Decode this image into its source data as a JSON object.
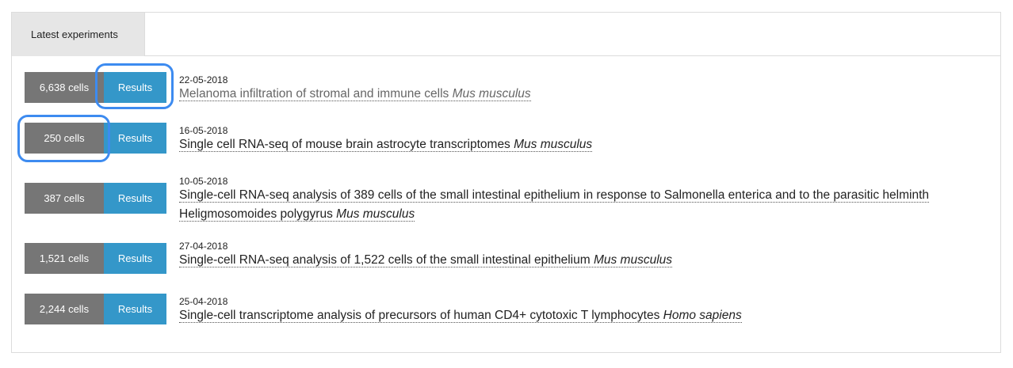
{
  "tabs": [
    {
      "label": "Latest experiments"
    }
  ],
  "experiments": [
    {
      "cells": "6,638 cells",
      "results_label": "Results",
      "date": "22-05-2018",
      "title": "Melanoma infiltration of stromal and immune cells",
      "species": "Mus musculus"
    },
    {
      "cells": "250 cells",
      "results_label": "Results",
      "date": "16-05-2018",
      "title": "Single cell RNA-seq of mouse brain astrocyte transcriptomes",
      "species": "Mus musculus"
    },
    {
      "cells": "387 cells",
      "results_label": "Results",
      "date": "10-05-2018",
      "title": "Single-cell RNA-seq analysis of 389 cells of the small intestinal epithelium in response to Salmonella enterica and to the parasitic helminth Heligmosomoides polygyrus",
      "species": "Mus musculus"
    },
    {
      "cells": "1,521 cells",
      "results_label": "Results",
      "date": "27-04-2018",
      "title": "Single-cell RNA-seq analysis of 1,522 cells of the small intestinal epithelium",
      "species": "Mus musculus"
    },
    {
      "cells": "2,244 cells",
      "results_label": "Results",
      "date": "25-04-2018",
      "title": "Single-cell transcriptome analysis of precursors of human CD4+ cytotoxic T lymphocytes",
      "species": "Homo sapiens"
    }
  ],
  "colors": {
    "cells_badge": "#767676",
    "results_button": "#3497c9",
    "highlight_outline": "#3d8bf0"
  }
}
